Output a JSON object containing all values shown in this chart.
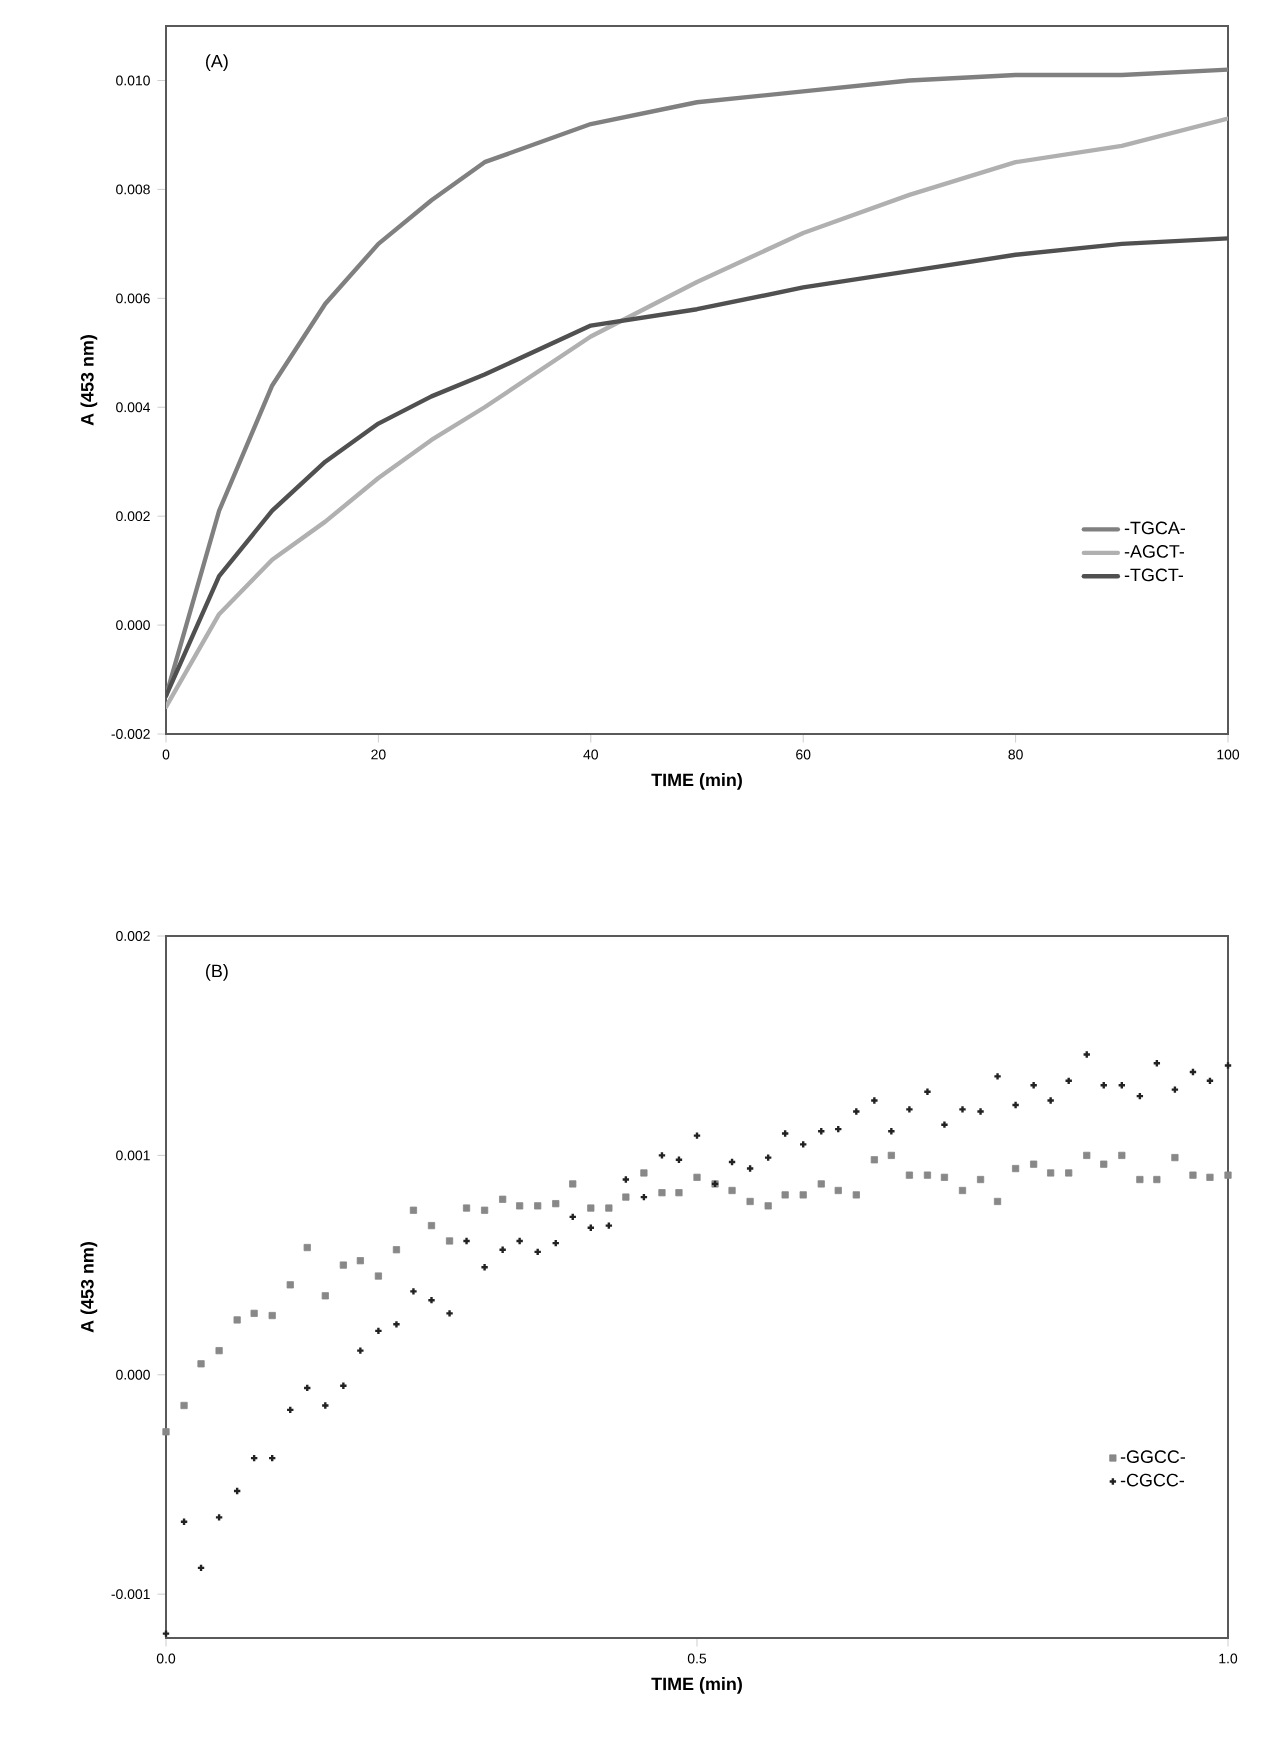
{
  "chart_data": [
    {
      "type": "line",
      "xlabel": "TIME (min)",
      "ylabel": "A (453 nm)",
      "annotations": [
        "(A)"
      ],
      "xlim": [
        0,
        100
      ],
      "ylim": [
        -0.002,
        0.011
      ],
      "xticks": [
        0,
        20,
        40,
        60,
        80,
        100
      ],
      "yticks": [
        {
          "value": -0.002,
          "label": "-0.002"
        },
        {
          "value": 0.0,
          "label": "0.000"
        },
        {
          "value": 0.002,
          "label": "0.002"
        },
        {
          "value": 0.004,
          "label": "0.004"
        },
        {
          "value": 0.006,
          "label": "0.006"
        },
        {
          "value": 0.008,
          "label": "0.008"
        },
        {
          "value": 0.01,
          "label": "0.010"
        }
      ],
      "legend": "bottom right",
      "marker": "none",
      "x": [
        0,
        5,
        10,
        15,
        20,
        25,
        30,
        40,
        50,
        60,
        70,
        80,
        90,
        100
      ],
      "series": [
        {
          "name": "-TGCA-",
          "color": "#808080",
          "values": [
            -0.0013,
            0.0021,
            0.0044,
            0.0059,
            0.007,
            0.0078,
            0.0085,
            0.0092,
            0.0096,
            0.0098,
            0.01,
            0.0101,
            0.0101,
            0.0102
          ]
        },
        {
          "name": "-AGCT-",
          "color": "#b0b0b0",
          "values": [
            -0.0015,
            0.0002,
            0.0012,
            0.0019,
            0.0027,
            0.0034,
            0.004,
            0.0053,
            0.0063,
            0.0072,
            0.0079,
            0.0085,
            0.0088,
            0.0093
          ]
        },
        {
          "name": "-TGCT-",
          "color": "#505050",
          "values": [
            -0.0013,
            0.0009,
            0.0021,
            0.003,
            0.0037,
            0.0042,
            0.0046,
            0.0055,
            0.0058,
            0.0062,
            0.0065,
            0.0068,
            0.007,
            0.0071
          ]
        }
      ]
    },
    {
      "type": "scatter",
      "xlabel": "TIME (min)",
      "ylabel": "A (453 nm)",
      "annotations": [
        "(B)"
      ],
      "xlim": [
        0,
        1
      ],
      "ylim": [
        -0.0012,
        0.002
      ],
      "xticks": [
        {
          "value": 0,
          "label": "0.0"
        },
        {
          "value": 0.5,
          "label": "0.5"
        },
        {
          "value": 1,
          "label": "1.0"
        }
      ],
      "yticks": [
        {
          "value": -0.001,
          "label": "-0.001"
        },
        {
          "value": 0.0,
          "label": "0.000"
        },
        {
          "value": 0.001,
          "label": "0.001"
        },
        {
          "value": 0.002,
          "label": "0.002"
        }
      ],
      "legend": "bottom right",
      "x": [
        0,
        0.017,
        0.033,
        0.05,
        0.067,
        0.083,
        0.1,
        0.117,
        0.133,
        0.15,
        0.167,
        0.183,
        0.2,
        0.217,
        0.233,
        0.25,
        0.267,
        0.283,
        0.3,
        0.317,
        0.333,
        0.35,
        0.367,
        0.383,
        0.4,
        0.417,
        0.433,
        0.45,
        0.467,
        0.483,
        0.5,
        0.517,
        0.533,
        0.55,
        0.567,
        0.583,
        0.6,
        0.617,
        0.633,
        0.65,
        0.667,
        0.683,
        0.7,
        0.717,
        0.733,
        0.75,
        0.767,
        0.783,
        0.8,
        0.817,
        0.833,
        0.85,
        0.867,
        0.883,
        0.9,
        0.917,
        0.933,
        0.95,
        0.967,
        0.983,
        1
      ],
      "series": [
        {
          "name": "-GGCC-",
          "color": "#888888",
          "marker": "square",
          "values": [
            -0.00026,
            -0.00014,
            5e-05,
            0.00011,
            0.00025,
            0.00028,
            0.00027,
            0.00041,
            0.00058,
            0.00036,
            0.0005,
            0.00052,
            0.00045,
            0.00057,
            0.00075,
            0.00068,
            0.00061,
            0.00076,
            0.00075,
            0.0008,
            0.00077,
            0.00077,
            0.00078,
            0.00087,
            0.00076,
            0.00076,
            0.00081,
            0.00092,
            0.00083,
            0.00083,
            0.0009,
            0.00087,
            0.00084,
            0.00079,
            0.00077,
            0.00082,
            0.00082,
            0.00087,
            0.00084,
            0.00082,
            0.00098,
            0.001,
            0.00091,
            0.00091,
            0.0009,
            0.00084,
            0.00089,
            0.00079,
            0.00094,
            0.00096,
            0.00092,
            0.00092,
            0.001,
            0.00096,
            0.001,
            0.00089,
            0.00089,
            0.00099,
            0.00091,
            0.0009,
            0.00091
          ]
        },
        {
          "name": "-CGCC-",
          "color": "#222222",
          "marker": "cross",
          "values": [
            -0.00118,
            -0.00067,
            -0.00088,
            -0.00065,
            -0.00053,
            -0.00038,
            -0.00038,
            -0.00016,
            -6e-05,
            -0.00014,
            -5e-05,
            0.00011,
            0.0002,
            0.00023,
            0.00038,
            0.00034,
            0.00028,
            0.00061,
            0.00049,
            0.00057,
            0.00061,
            0.00056,
            0.0006,
            0.00072,
            0.00067,
            0.00068,
            0.00089,
            0.00081,
            0.001,
            0.00098,
            0.00109,
            0.00087,
            0.00097,
            0.00094,
            0.00099,
            0.0011,
            0.00105,
            0.00111,
            0.00112,
            0.0012,
            0.00125,
            0.00111,
            0.00121,
            0.00129,
            0.00114,
            0.00121,
            0.0012,
            0.00136,
            0.00123,
            0.00132,
            0.00125,
            0.00134,
            0.00146,
            0.00132,
            0.00132,
            0.00127,
            0.00142,
            0.0013,
            0.00138,
            0.00134,
            0.00141
          ]
        }
      ]
    }
  ]
}
